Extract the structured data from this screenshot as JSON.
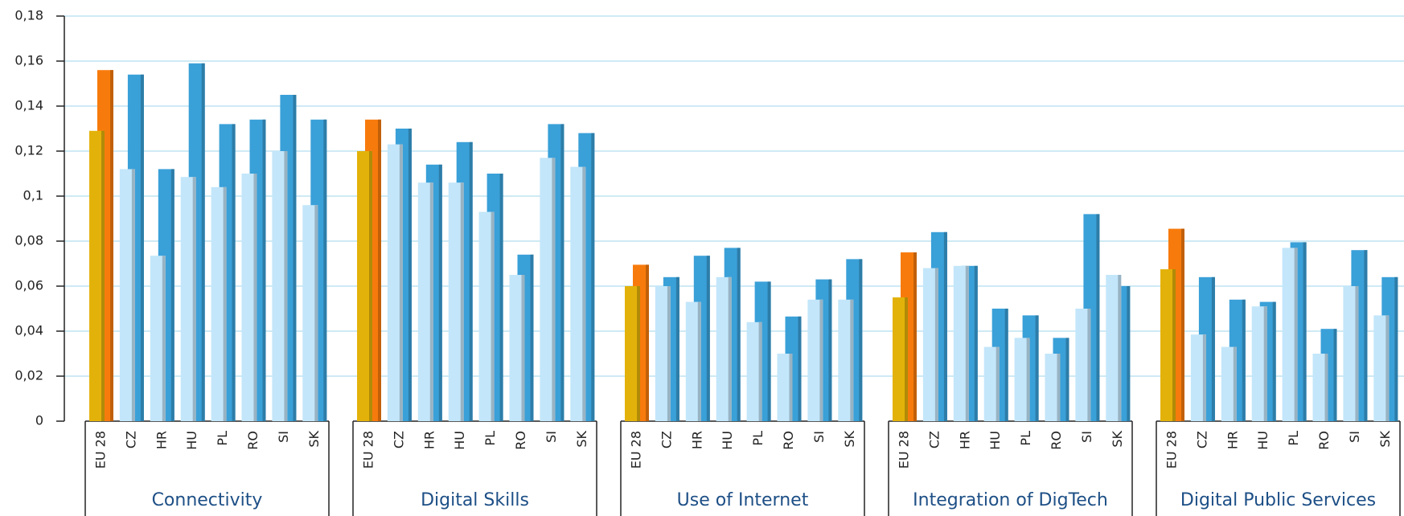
{
  "chart_data": {
    "type": "grouped_bar",
    "ylim": [
      0,
      0.18
    ],
    "yticks": [
      0,
      {
        "value": 0.02,
        "label": "0,02"
      },
      {
        "value": 0.04,
        "label": "0,04"
      },
      {
        "value": 0.06,
        "label": "0,06"
      },
      {
        "value": 0.08,
        "label": "0,08"
      },
      {
        "value": 0.1,
        "label": "0,1"
      },
      {
        "value": 0.12,
        "label": "0,12"
      },
      {
        "value": 0.14,
        "label": "0,14"
      },
      {
        "value": 0.16,
        "label": "0,16"
      },
      {
        "value": 0.18,
        "label": "0,18"
      }
    ],
    "grid": true,
    "series_colors": [
      [
        "#e3b20a",
        "#c3e6fa",
        "#c3e6fa",
        "#c3e6fa",
        "#c3e6fa",
        "#c3e6fa",
        "#c3e6fa",
        "#c3e6fa"
      ],
      [
        "#f77b0c",
        "#3aa0d8",
        "#3aa0d8",
        "#3aa0d8",
        "#3aa0d8",
        "#3aa0d8",
        "#3aa0d8",
        "#3aa0d8"
      ]
    ],
    "groups": [
      {
        "label": "Connectivity",
        "categories": [
          "EU 28",
          "CZ",
          "HR",
          "HU",
          "PL",
          "RO",
          "SI",
          "SK"
        ],
        "series": [
          {
            "values": [
              0.129,
              0.112,
              0.0735,
              0.1085,
              0.104,
              0.11,
              0.12,
              0.096
            ]
          },
          {
            "values": [
              0.156,
              0.154,
              0.112,
              0.159,
              0.132,
              0.134,
              0.145,
              0.134
            ]
          }
        ]
      },
      {
        "label": "Digital Skills",
        "categories": [
          "EU 28",
          "CZ",
          "HR",
          "HU",
          "PL",
          "RO",
          "SI",
          "SK"
        ],
        "series": [
          {
            "values": [
              0.12,
              0.123,
              0.106,
              0.106,
              0.093,
              0.065,
              0.117,
              0.113
            ]
          },
          {
            "values": [
              0.134,
              0.13,
              0.114,
              0.124,
              0.11,
              0.074,
              0.132,
              0.128
            ]
          }
        ]
      },
      {
        "label": "Use of Internet",
        "categories": [
          "EU 28",
          "CZ",
          "HR",
          "HU",
          "PL",
          "RO",
          "SI",
          "SK"
        ],
        "series": [
          {
            "values": [
              0.06,
              0.06,
              0.053,
              0.064,
              0.044,
              0.03,
              0.054,
              0.054
            ]
          },
          {
            "values": [
              0.0695,
              0.064,
              0.0735,
              0.077,
              0.062,
              0.0465,
              0.063,
              0.072
            ]
          }
        ]
      },
      {
        "label": "Integration of DigTech",
        "categories": [
          "EU 28",
          "CZ",
          "HR",
          "HU",
          "PL",
          "RO",
          "SI",
          "SK"
        ],
        "series": [
          {
            "values": [
              0.055,
              0.068,
              0.069,
              0.033,
              0.037,
              0.03,
              0.05,
              0.065
            ]
          },
          {
            "values": [
              0.075,
              0.084,
              0.069,
              0.05,
              0.047,
              0.037,
              0.092,
              0.06
            ]
          }
        ]
      },
      {
        "label": "Digital Public Services",
        "categories": [
          "EU 28",
          "CZ",
          "HR",
          "HU",
          "PL",
          "RO",
          "SI",
          "SK"
        ],
        "series": [
          {
            "values": [
              0.0675,
              0.0385,
              0.033,
              0.051,
              0.077,
              0.03,
              0.06,
              0.047
            ]
          },
          {
            "values": [
              0.0855,
              0.064,
              0.054,
              0.053,
              0.0795,
              0.041,
              0.076,
              0.064
            ]
          }
        ]
      }
    ]
  }
}
